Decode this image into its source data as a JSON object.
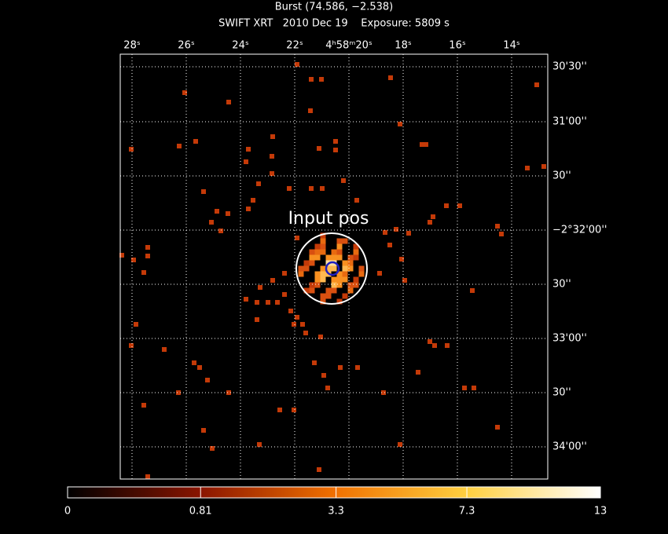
{
  "chart_data": {
    "type": "image",
    "title": "Burst (74.586, −2.538)",
    "subtitle": "SWIFT XRT   2010 Dec 19    Exposure: 5809 s",
    "x_tick_labels": [
      "28ˢ",
      "26ˢ",
      "24ˢ",
      "22ˢ",
      "4ʰ58ᵐ20ˢ",
      "18ˢ",
      "16ˢ",
      "14ˢ"
    ],
    "y_tick_labels": [
      "30'30''",
      "31'00''",
      "30''",
      "−2°32'00''",
      "30''",
      "33'00''",
      "30''",
      "34'00''"
    ],
    "annotation": "Input pos",
    "colorbar": {
      "scale": "sqrt",
      "lim": [
        0,
        13
      ],
      "ticks": [
        0,
        0.81,
        3.3,
        7.3,
        13
      ]
    }
  }
}
